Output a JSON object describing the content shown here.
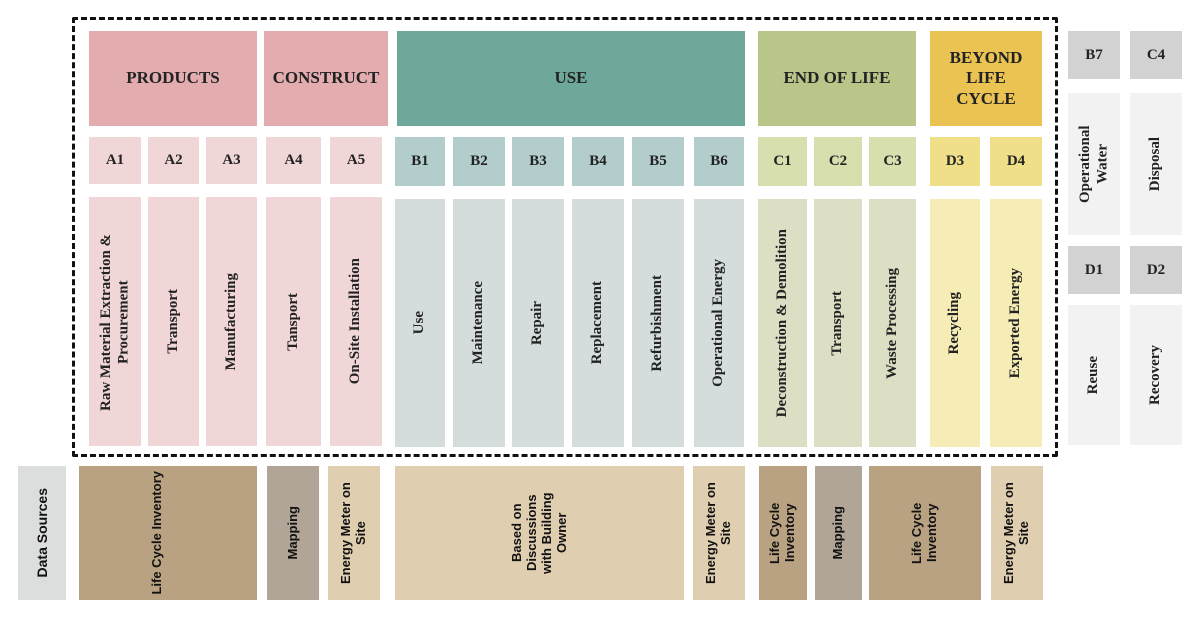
{
  "stages": {
    "products": "PRODUCTS",
    "construct": "CONSTRUCT",
    "use": "USE",
    "end_of_life": "END OF LIFE",
    "beyond": "BEYOND LIFE CYCLE"
  },
  "modules": [
    {
      "code": "A1",
      "label": "Raw Material Extraction & Procurement"
    },
    {
      "code": "A2",
      "label": "Transport"
    },
    {
      "code": "A3",
      "label": "Manufacturing"
    },
    {
      "code": "A4",
      "label": "Tansport"
    },
    {
      "code": "A5",
      "label": "On-Site Installation"
    },
    {
      "code": "B1",
      "label": "Use"
    },
    {
      "code": "B2",
      "label": "Maintenance"
    },
    {
      "code": "B3",
      "label": "Repair"
    },
    {
      "code": "B4",
      "label": "Replacement"
    },
    {
      "code": "B5",
      "label": "Refurbishment"
    },
    {
      "code": "B6",
      "label": "Operational Energy"
    },
    {
      "code": "C1",
      "label": "Deconstruction & Demolition"
    },
    {
      "code": "C2",
      "label": "Transport"
    },
    {
      "code": "C3",
      "label": "Waste Processing"
    },
    {
      "code": "D3",
      "label": "Recycling"
    },
    {
      "code": "D4",
      "label": "Exported Energy"
    }
  ],
  "excluded": [
    {
      "code": "B7",
      "label": "Operational Water"
    },
    {
      "code": "C4",
      "label": "Disposal"
    },
    {
      "code": "D1",
      "label": "Reuse"
    },
    {
      "code": "D2",
      "label": "Recovery"
    }
  ],
  "data_sources": {
    "title": "Data Sources",
    "items": [
      "Life Cycle Inventory",
      "Mapping",
      "Energy Meter on Site",
      "Based on Discussions with Building Owner",
      "Energy Meter on Site",
      "Life Cycle Inventory",
      "Mapping",
      "Life Cycle Inventory",
      "Energy Meter on Site"
    ]
  },
  "colors": {
    "products_header": "#e3adaf",
    "products_light": "#f0d6d7",
    "use_header": "#6da89a",
    "use_code": "#b3cdcd",
    "use_light": "#d5dcdc",
    "eol_header": "#b9c68a",
    "eol_code": "#d8dfae",
    "eol_light": "#dcdfc4",
    "beyond_header": "#eac352",
    "beyond_code": "#efdf88",
    "beyond_light": "#f6ecb5",
    "excluded_code": "#d2d2d2",
    "excluded_light": "#f2f2f2",
    "src_dark": "#b8a282",
    "src_map": "#b0a596",
    "src_light": "#e0ceb1",
    "src_label": "#dcdedd"
  }
}
